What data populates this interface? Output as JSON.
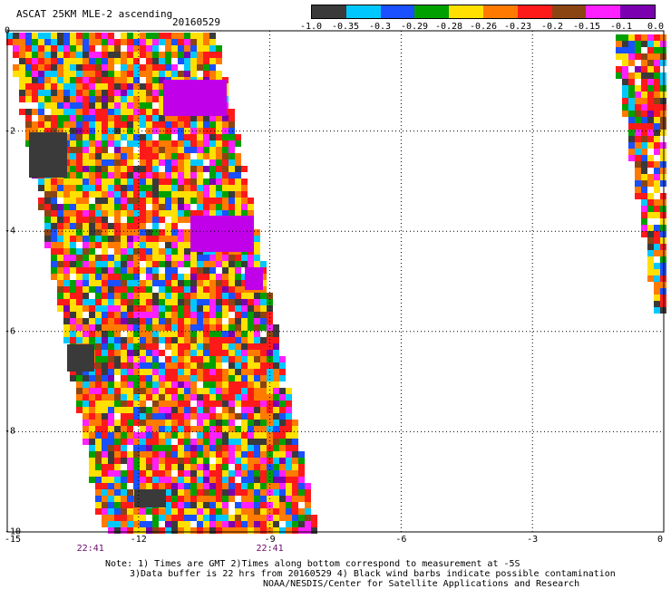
{
  "header": {
    "title": "ASCAT 25KM MLE-2 ascending",
    "date": "20160529"
  },
  "colorbar": {
    "colors": [
      "#3a3a3a",
      "#00c8ff",
      "#1a50ff",
      "#00a000",
      "#ffe000",
      "#ff7a00",
      "#ff1a1a",
      "#8b4513",
      "#ff20ff",
      "#7a00b0"
    ],
    "labels": [
      "-1.0",
      "-0.35",
      "-0.3",
      "-0.29",
      "-0.28",
      "-0.26",
      "-0.23",
      "-0.2",
      "-0.15",
      "-0.1",
      "0.0"
    ]
  },
  "axes": {
    "x_ticks": [
      "-15",
      "-12",
      "-9",
      "-6",
      "-3",
      "0"
    ],
    "y_ticks": [
      "0",
      "-2",
      "-4",
      "-6",
      "-8",
      "-10"
    ],
    "x_range": [
      -15,
      0
    ],
    "y_range": [
      -10,
      0
    ]
  },
  "time_labels": [
    {
      "text": "22:41",
      "lon": -13.1
    },
    {
      "text": "22:41",
      "lon": -9.0
    }
  ],
  "notes": {
    "line1": "Note: 1) Times are GMT 2)Times along bottom correspond to measurement at -5S",
    "line2": "3)Data buffer is 22 hrs from 20160529 4) Black wind barbs indicate possible contamination",
    "line3": "NOAA/NESDIS/Center for Satellite Applications and Research"
  }
}
